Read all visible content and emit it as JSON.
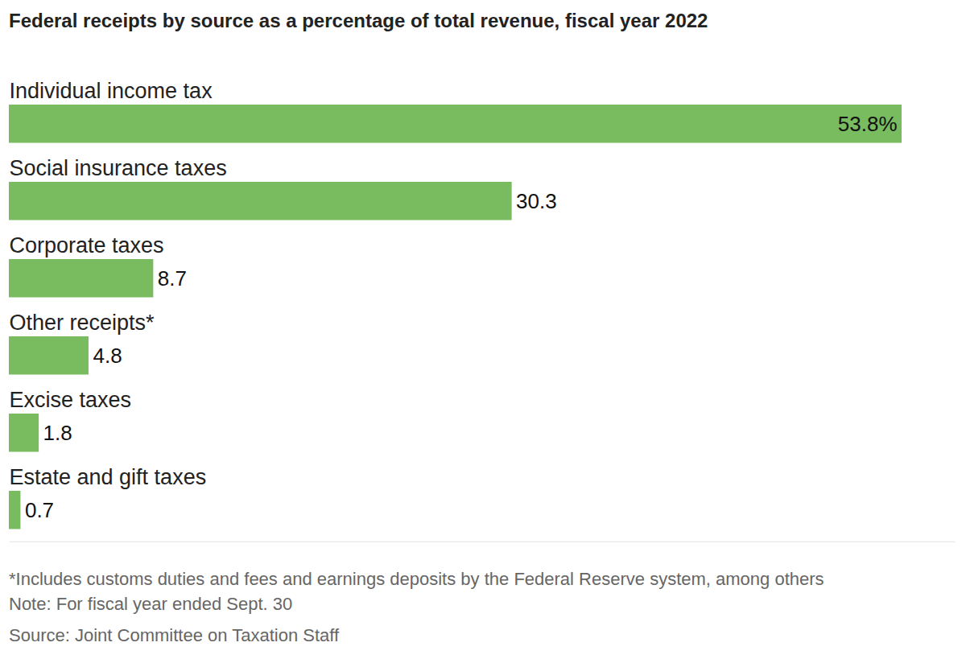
{
  "chart_data": {
    "type": "bar",
    "title": "Federal receipts by source as a percentage of total revenue, fiscal year 2022",
    "categories": [
      "Individual income tax",
      "Social insurance taxes",
      "Corporate taxes",
      "Other receipts*",
      "Excise taxes",
      "Estate and gift taxes"
    ],
    "values": [
      53.8,
      30.3,
      8.7,
      4.8,
      1.8,
      0.7
    ],
    "value_labels": [
      "53.8%",
      "30.3",
      "8.7",
      "4.8",
      "1.8",
      "0.7"
    ],
    "color": "#79bb5f",
    "orientation": "horizontal",
    "data_labels": true,
    "tick_labels": false,
    "grid": false,
    "xlim": [
      0,
      57
    ],
    "xticks": [],
    "notes": [
      "*Includes customs duties and fees and earnings deposits by the Federal Reserve system, among others",
      "Note: For fiscal year ended Sept. 30",
      "Source: Joint Committee on Taxation Staff"
    ]
  }
}
